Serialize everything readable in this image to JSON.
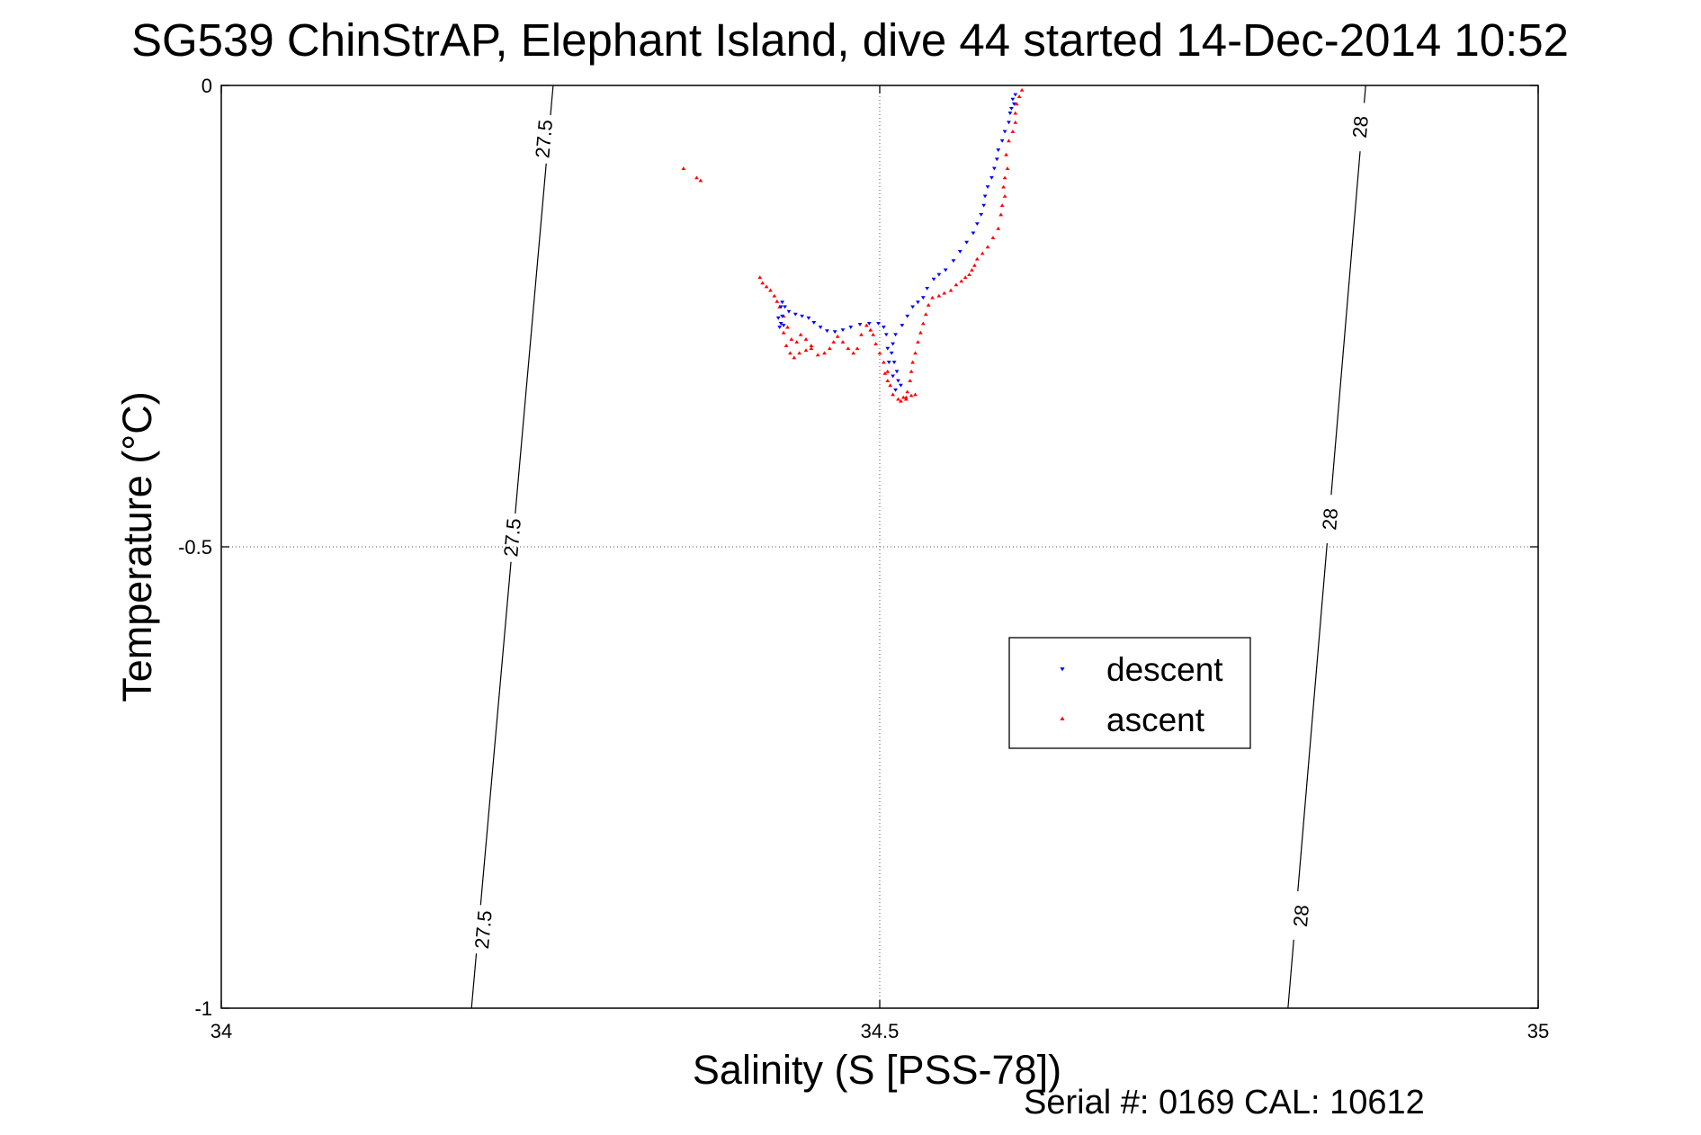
{
  "chart_data": {
    "type": "scatter",
    "title": "SG539 ChinStrAP, Elephant Island, dive 44 started 14-Dec-2014 10:52",
    "xlabel": "Salinity (S [PSS-78])",
    "ylabel": "Temperature (°C)",
    "xlim": [
      34,
      35
    ],
    "ylim": [
      -1,
      0
    ],
    "xticks": [
      34,
      34.5,
      35
    ],
    "yticks": [
      -1,
      -0.5,
      0
    ],
    "xtick_labels": [
      "34",
      "34.5",
      "35"
    ],
    "ytick_labels": [
      "-1",
      "-0.5",
      "0"
    ],
    "grid": true,
    "legend_position": "right-middle",
    "footer_text": "Serial #: 0169 CAL: 10612",
    "isopycnals": [
      {
        "label": "27.5",
        "points": [
          [
            34.252,
            0.0
          ],
          [
            34.19,
            -1.0
          ]
        ],
        "label_points": [
          [
            34.245,
            -0.058
          ],
          [
            34.221,
            -0.49
          ],
          [
            34.199,
            -0.915
          ]
        ]
      },
      {
        "label": "28",
        "points": [
          [
            34.869,
            0.0
          ],
          [
            34.81,
            -1.0
          ]
        ],
        "label_points": [
          [
            34.865,
            -0.045
          ],
          [
            34.842,
            -0.47
          ],
          [
            34.82,
            -0.9
          ]
        ]
      }
    ],
    "series": [
      {
        "name": "descent",
        "color": "#0000ff",
        "marker": "triangle-down",
        "points": [
          [
            34.603,
            -0.01
          ],
          [
            34.601,
            -0.015
          ],
          [
            34.602,
            -0.02
          ],
          [
            34.6,
            -0.025
          ],
          [
            34.599,
            -0.03
          ],
          [
            34.598,
            -0.04
          ],
          [
            34.595,
            -0.05
          ],
          [
            34.593,
            -0.06
          ],
          [
            34.59,
            -0.07
          ],
          [
            34.589,
            -0.08
          ],
          [
            34.587,
            -0.09
          ],
          [
            34.585,
            -0.1
          ],
          [
            34.582,
            -0.11
          ],
          [
            34.58,
            -0.12
          ],
          [
            34.579,
            -0.13
          ],
          [
            34.577,
            -0.14
          ],
          [
            34.574,
            -0.15
          ],
          [
            34.571,
            -0.16
          ],
          [
            34.566,
            -0.17
          ],
          [
            34.561,
            -0.18
          ],
          [
            34.556,
            -0.19
          ],
          [
            34.55,
            -0.2
          ],
          [
            34.545,
            -0.205
          ],
          [
            34.541,
            -0.21
          ],
          [
            34.536,
            -0.22
          ],
          [
            34.533,
            -0.23
          ],
          [
            34.529,
            -0.235
          ],
          [
            34.525,
            -0.24
          ],
          [
            34.521,
            -0.25
          ],
          [
            34.517,
            -0.26
          ],
          [
            34.512,
            -0.27
          ],
          [
            34.51,
            -0.28
          ],
          [
            34.509,
            -0.29
          ],
          [
            34.511,
            -0.3
          ],
          [
            34.513,
            -0.31
          ],
          [
            34.514,
            -0.32
          ],
          [
            34.516,
            -0.325
          ],
          [
            34.512,
            -0.33
          ],
          [
            34.51,
            -0.315
          ],
          [
            34.507,
            -0.3
          ],
          [
            34.506,
            -0.285
          ],
          [
            34.505,
            -0.27
          ],
          [
            34.503,
            -0.262
          ],
          [
            34.499,
            -0.258
          ],
          [
            34.492,
            -0.258
          ],
          [
            34.485,
            -0.259
          ],
          [
            34.478,
            -0.262
          ],
          [
            34.472,
            -0.265
          ],
          [
            34.466,
            -0.267
          ],
          [
            34.46,
            -0.266
          ],
          [
            34.455,
            -0.262
          ],
          [
            34.45,
            -0.257
          ],
          [
            34.446,
            -0.252
          ],
          [
            34.441,
            -0.25
          ],
          [
            34.436,
            -0.248
          ],
          [
            34.431,
            -0.245
          ],
          [
            34.428,
            -0.24
          ],
          [
            34.426,
            -0.235
          ],
          [
            34.425,
            -0.24
          ],
          [
            34.426,
            -0.25
          ],
          [
            34.425,
            -0.258
          ],
          [
            34.424,
            -0.262
          ],
          [
            34.423,
            -0.252
          ],
          [
            34.427,
            -0.26
          ]
        ]
      },
      {
        "name": "ascent",
        "color": "#ff0000",
        "marker": "triangle-up",
        "points": [
          [
            34.608,
            -0.005
          ],
          [
            34.606,
            -0.012
          ],
          [
            34.604,
            -0.02
          ],
          [
            34.603,
            -0.03
          ],
          [
            34.603,
            -0.04
          ],
          [
            34.601,
            -0.05
          ],
          [
            34.598,
            -0.06
          ],
          [
            34.596,
            -0.075
          ],
          [
            34.597,
            -0.09
          ],
          [
            34.595,
            -0.1
          ],
          [
            34.594,
            -0.11
          ],
          [
            34.595,
            -0.12
          ],
          [
            34.593,
            -0.13
          ],
          [
            34.592,
            -0.14
          ],
          [
            34.59,
            -0.155
          ],
          [
            34.586,
            -0.165
          ],
          [
            34.582,
            -0.175
          ],
          [
            34.578,
            -0.182
          ],
          [
            34.574,
            -0.188
          ],
          [
            34.572,
            -0.195
          ],
          [
            34.57,
            -0.2
          ],
          [
            34.568,
            -0.205
          ],
          [
            34.565,
            -0.208
          ],
          [
            34.562,
            -0.212
          ],
          [
            34.558,
            -0.216
          ],
          [
            34.554,
            -0.222
          ],
          [
            34.549,
            -0.225
          ],
          [
            34.545,
            -0.228
          ],
          [
            34.54,
            -0.23
          ],
          [
            34.537,
            -0.238
          ],
          [
            34.535,
            -0.248
          ],
          [
            34.533,
            -0.258
          ],
          [
            34.531,
            -0.268
          ],
          [
            34.529,
            -0.278
          ],
          [
            34.527,
            -0.29
          ],
          [
            34.525,
            -0.3
          ],
          [
            34.524,
            -0.31
          ],
          [
            34.523,
            -0.32
          ],
          [
            34.521,
            -0.332
          ],
          [
            34.518,
            -0.338
          ],
          [
            34.514,
            -0.34
          ],
          [
            34.51,
            -0.335
          ],
          [
            34.508,
            -0.325
          ],
          [
            34.506,
            -0.31
          ],
          [
            34.503,
            -0.3
          ],
          [
            34.5,
            -0.29
          ],
          [
            34.497,
            -0.28
          ],
          [
            34.495,
            -0.27
          ],
          [
            34.493,
            -0.265
          ],
          [
            34.49,
            -0.26
          ],
          [
            34.486,
            -0.27
          ],
          [
            34.483,
            -0.285
          ],
          [
            34.48,
            -0.29
          ],
          [
            34.476,
            -0.285
          ],
          [
            34.472,
            -0.278
          ],
          [
            34.468,
            -0.272
          ],
          [
            34.465,
            -0.278
          ],
          [
            34.462,
            -0.285
          ],
          [
            34.458,
            -0.29
          ],
          [
            34.453,
            -0.292
          ],
          [
            34.448,
            -0.282
          ],
          [
            34.444,
            -0.275
          ],
          [
            34.44,
            -0.27
          ],
          [
            34.437,
            -0.278
          ],
          [
            34.433,
            -0.275
          ],
          [
            34.43,
            -0.262
          ],
          [
            34.427,
            -0.25
          ],
          [
            34.424,
            -0.24
          ],
          [
            34.422,
            -0.234
          ],
          [
            34.42,
            -0.228
          ],
          [
            34.417,
            -0.222
          ],
          [
            34.414,
            -0.218
          ],
          [
            34.411,
            -0.214
          ],
          [
            34.409,
            -0.208
          ],
          [
            34.427,
            -0.268
          ],
          [
            34.429,
            -0.282
          ],
          [
            34.432,
            -0.29
          ],
          [
            34.435,
            -0.295
          ],
          [
            34.439,
            -0.29
          ],
          [
            34.444,
            -0.287
          ],
          [
            34.448,
            -0.285
          ],
          [
            34.516,
            -0.342
          ],
          [
            34.52,
            -0.338
          ],
          [
            34.524,
            -0.336
          ],
          [
            34.527,
            -0.335
          ],
          [
            34.52,
            -0.34
          ],
          [
            34.504,
            -0.312
          ],
          [
            34.506,
            -0.32
          ],
          [
            34.351,
            -0.09
          ],
          [
            34.361,
            -0.1
          ],
          [
            34.364,
            -0.103
          ]
        ]
      }
    ]
  }
}
